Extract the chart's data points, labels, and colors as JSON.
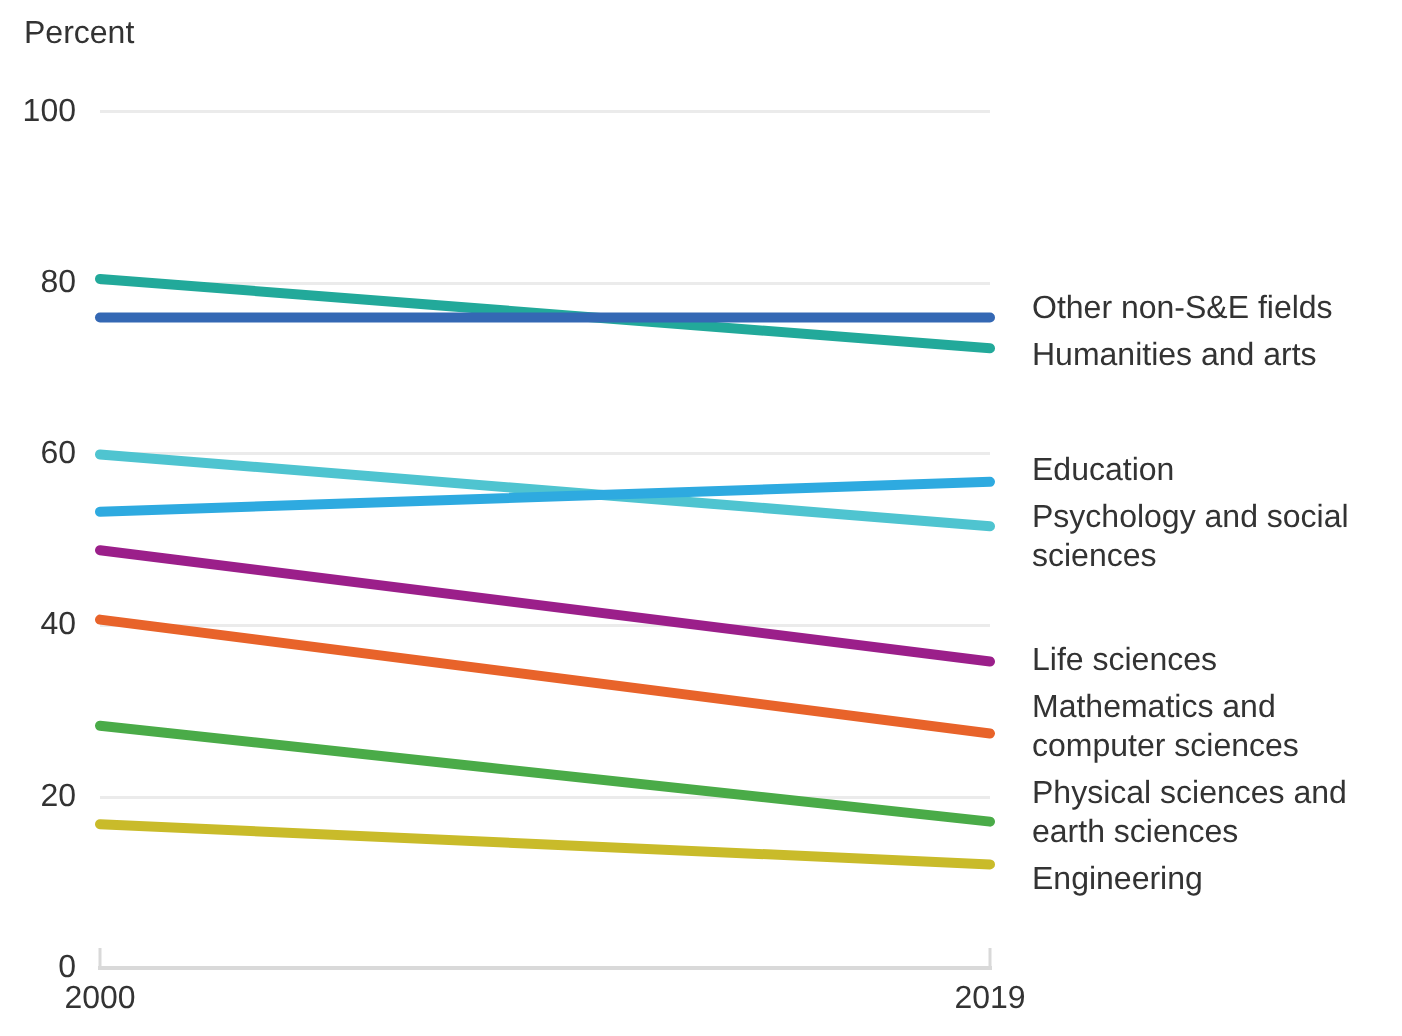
{
  "chart_data": {
    "type": "line",
    "ylabel": "Percent",
    "x": [
      2000,
      2019
    ],
    "xlim": [
      2000,
      2019
    ],
    "xticks": [
      2000,
      2019
    ],
    "ylim": [
      0,
      100
    ],
    "yticks": [
      0,
      20,
      40,
      60,
      80,
      100
    ],
    "grid": "y",
    "series": [
      {
        "name": "Other non-S&E fields",
        "color": "#3468b4",
        "values": [
          76,
          76
        ]
      },
      {
        "name": "Humanities and arts",
        "color": "#22a99a",
        "values": [
          80.5,
          72.4
        ]
      },
      {
        "name": "Education",
        "color": "#2eaae0",
        "values": [
          53.3,
          56.8
        ]
      },
      {
        "name": "Psychology and social sciences",
        "color": "#4fc4d0",
        "values": [
          60,
          51.6
        ]
      },
      {
        "name": "Life sciences",
        "color": "#9b1f8a",
        "values": [
          48.8,
          35.8
        ]
      },
      {
        "name": "Mathematics and computer sciences",
        "color": "#e8632a",
        "values": [
          40.7,
          27.4
        ]
      },
      {
        "name": "Physical sciences and earth sciences",
        "color": "#4aab48",
        "values": [
          28.3,
          17.1
        ]
      },
      {
        "name": "Engineering",
        "color": "#c9bb2a",
        "values": [
          16.8,
          12.1
        ]
      }
    ]
  }
}
